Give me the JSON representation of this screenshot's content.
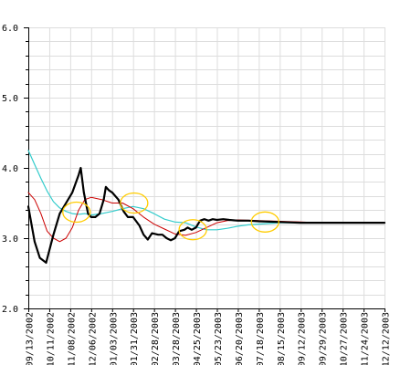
{
  "chart_data": {
    "type": "line",
    "title": "",
    "xlabel": "",
    "ylabel": "",
    "ylim": [
      2.0,
      6.0
    ],
    "yticks": [
      "2.0",
      "3.0",
      "4.0",
      "5.0",
      "6.0"
    ],
    "grid": true,
    "legend": "none",
    "xticks": [
      "09/13/2002",
      "10/11/2002",
      "11/08/2002",
      "12/06/2002",
      "01/03/2003",
      "01/31/2003",
      "02/28/2003",
      "03/28/2003",
      "04/25/2003",
      "05/23/2003",
      "06/20/2003",
      "07/18/2003",
      "08/15/2003",
      "09/12/2003",
      "09/29/2003",
      "10/27/2003",
      "11/24/2003",
      "12/12/2003"
    ],
    "series": [
      {
        "color": "#000000",
        "points": [
          [
            0,
            3.45
          ],
          [
            0.3,
            2.95
          ],
          [
            0.55,
            2.72
          ],
          [
            0.85,
            2.65
          ],
          [
            1.0,
            2.82
          ],
          [
            1.2,
            3.05
          ],
          [
            1.5,
            3.35
          ],
          [
            1.8,
            3.5
          ],
          [
            2.1,
            3.65
          ],
          [
            2.4,
            3.9
          ],
          [
            2.5,
            4.0
          ],
          [
            2.65,
            3.65
          ],
          [
            2.85,
            3.35
          ],
          [
            3.0,
            3.3
          ],
          [
            3.2,
            3.3
          ],
          [
            3.4,
            3.35
          ],
          [
            3.6,
            3.55
          ],
          [
            3.7,
            3.73
          ],
          [
            3.85,
            3.68
          ],
          [
            4.0,
            3.65
          ],
          [
            4.3,
            3.55
          ],
          [
            4.55,
            3.38
          ],
          [
            4.75,
            3.3
          ],
          [
            5.0,
            3.3
          ],
          [
            5.3,
            3.18
          ],
          [
            5.5,
            3.05
          ],
          [
            5.7,
            2.98
          ],
          [
            5.9,
            3.07
          ],
          [
            6.2,
            3.05
          ],
          [
            6.4,
            3.05
          ],
          [
            6.6,
            3.0
          ],
          [
            6.8,
            2.97
          ],
          [
            7.0,
            3.0
          ],
          [
            7.2,
            3.1
          ],
          [
            7.45,
            3.12
          ],
          [
            7.6,
            3.15
          ],
          [
            7.8,
            3.12
          ],
          [
            8.0,
            3.15
          ],
          [
            8.2,
            3.25
          ],
          [
            8.4,
            3.27
          ],
          [
            8.6,
            3.25
          ],
          [
            8.8,
            3.27
          ],
          [
            9.0,
            3.26
          ],
          [
            9.3,
            3.27
          ],
          [
            9.6,
            3.26
          ],
          [
            10.0,
            3.25
          ],
          [
            10.5,
            3.25
          ],
          [
            11.0,
            3.24
          ],
          [
            12.0,
            3.23
          ],
          [
            13.0,
            3.22
          ],
          [
            14.0,
            3.22
          ],
          [
            15.0,
            3.22
          ],
          [
            16.0,
            3.22
          ],
          [
            17.0,
            3.22
          ]
        ]
      },
      {
        "color": "#cc0000",
        "points": [
          [
            0,
            3.65
          ],
          [
            0.3,
            3.55
          ],
          [
            0.6,
            3.35
          ],
          [
            0.9,
            3.1
          ],
          [
            1.2,
            3.0
          ],
          [
            1.5,
            2.95
          ],
          [
            1.8,
            3.0
          ],
          [
            2.1,
            3.15
          ],
          [
            2.4,
            3.4
          ],
          [
            2.7,
            3.55
          ],
          [
            3.0,
            3.58
          ],
          [
            3.5,
            3.55
          ],
          [
            4.0,
            3.5
          ],
          [
            4.5,
            3.5
          ],
          [
            5.0,
            3.42
          ],
          [
            5.5,
            3.3
          ],
          [
            6.0,
            3.2
          ],
          [
            6.5,
            3.13
          ],
          [
            7.0,
            3.06
          ],
          [
            7.5,
            3.04
          ],
          [
            8.0,
            3.08
          ],
          [
            8.5,
            3.15
          ],
          [
            9.0,
            3.22
          ],
          [
            9.5,
            3.25
          ],
          [
            10.0,
            3.26
          ],
          [
            11.0,
            3.25
          ],
          [
            12.0,
            3.24
          ],
          [
            13.0,
            3.23
          ],
          [
            14.0,
            3.22
          ],
          [
            17.0,
            3.22
          ]
        ]
      },
      {
        "color": "#33cccc",
        "points": [
          [
            0,
            4.25
          ],
          [
            0.3,
            4.05
          ],
          [
            0.6,
            3.85
          ],
          [
            0.9,
            3.67
          ],
          [
            1.2,
            3.52
          ],
          [
            1.5,
            3.43
          ],
          [
            1.8,
            3.38
          ],
          [
            2.1,
            3.35
          ],
          [
            2.4,
            3.34
          ],
          [
            2.7,
            3.35
          ],
          [
            3.0,
            3.33
          ],
          [
            3.5,
            3.35
          ],
          [
            4.0,
            3.38
          ],
          [
            4.5,
            3.42
          ],
          [
            5.0,
            3.45
          ],
          [
            5.5,
            3.42
          ],
          [
            6.0,
            3.35
          ],
          [
            6.5,
            3.27
          ],
          [
            7.0,
            3.23
          ],
          [
            7.5,
            3.22
          ],
          [
            8.0,
            3.16
          ],
          [
            8.5,
            3.12
          ],
          [
            9.0,
            3.12
          ],
          [
            9.5,
            3.14
          ],
          [
            10.0,
            3.17
          ],
          [
            10.5,
            3.19
          ],
          [
            11.0,
            3.2
          ],
          [
            12.0,
            3.22
          ],
          [
            13.0,
            3.22
          ],
          [
            14.0,
            3.22
          ],
          [
            17.0,
            3.22
          ]
        ]
      }
    ],
    "annotations": [
      {
        "shape": "ellipse",
        "color": "#ffcc00",
        "x": 2.3,
        "y": 3.37
      },
      {
        "shape": "ellipse",
        "color": "#ffcc00",
        "x": 5.05,
        "y": 3.5
      },
      {
        "shape": "ellipse",
        "color": "#ffcc00",
        "x": 7.85,
        "y": 3.12
      },
      {
        "shape": "ellipse",
        "color": "#ffcc00",
        "x": 11.3,
        "y": 3.23
      }
    ]
  }
}
